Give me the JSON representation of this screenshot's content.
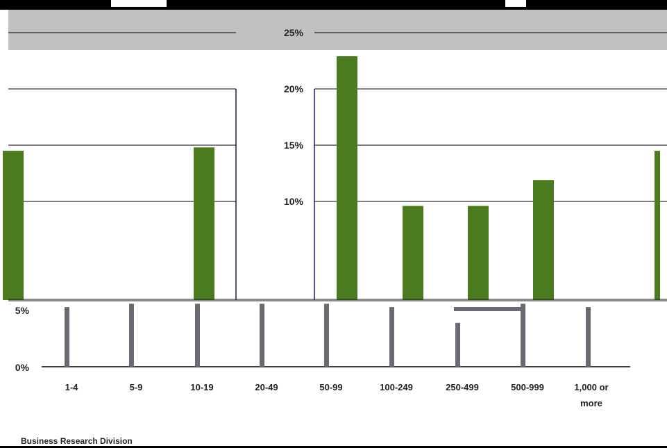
{
  "footer": "Business Research Division",
  "chart_data": {
    "type": "bar",
    "yticks": [
      "0%",
      "5%",
      "10%",
      "15%",
      "20%",
      "25%"
    ],
    "categories": [
      "1-4",
      "5-9",
      "10-19",
      "20-49",
      "50-99",
      "100-249",
      "250-499",
      "500-999",
      "1,000 or more"
    ],
    "panels": [
      {
        "name": "left",
        "values": [
          14.5,
          0,
          0,
          14.8
        ],
        "ylim": [
          0,
          25
        ]
      },
      {
        "name": "right",
        "values": [
          22.9,
          9.6,
          9.6,
          11.9,
          14.5
        ],
        "ylim": [
          0,
          25
        ]
      },
      {
        "name": "bottom",
        "values": [
          5.3,
          5.6,
          5.6,
          5.6,
          5.6,
          5.3,
          3.9,
          5.6,
          5.3
        ],
        "ylim": [
          0,
          25
        ]
      }
    ],
    "colors": {
      "bar": "#4a7b1f",
      "bottom_bar": "#6a6a72",
      "axis": "#1a1a60",
      "grid": "#000000"
    }
  }
}
